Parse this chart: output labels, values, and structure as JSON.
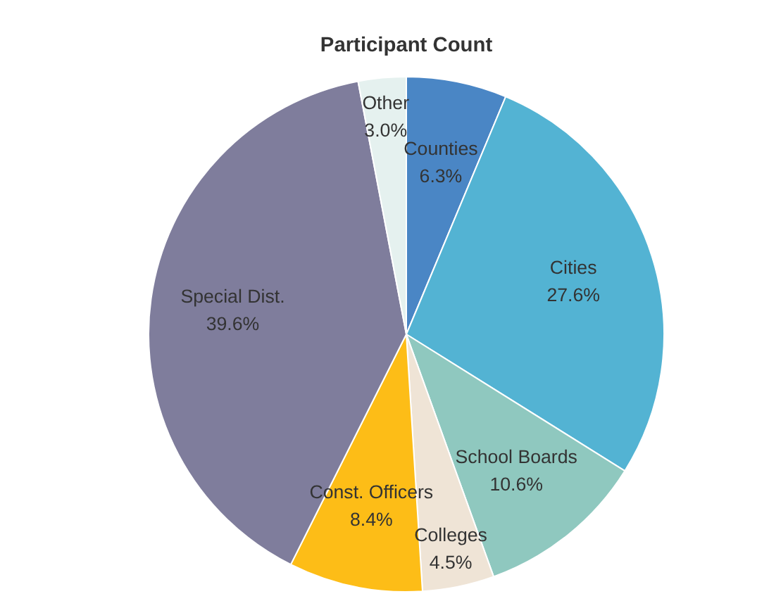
{
  "chart_data": {
    "type": "pie",
    "title": "Participant Count",
    "categories": [
      "Counties",
      "Cities",
      "School Boards",
      "Colleges",
      "Const. Officers",
      "Special Dist.",
      "Other"
    ],
    "values": [
      6.3,
      27.6,
      10.6,
      4.5,
      8.4,
      39.6,
      3.0
    ],
    "value_labels": [
      "6.3%",
      "27.6%",
      "10.6%",
      "4.5%",
      "8.4%",
      "39.6%",
      "3.0%"
    ],
    "colors": [
      "#4a86c5",
      "#53b3d3",
      "#8fc8bf",
      "#efe4d6",
      "#fdbd17",
      "#7f7d9c",
      "#e5f1ef"
    ]
  }
}
